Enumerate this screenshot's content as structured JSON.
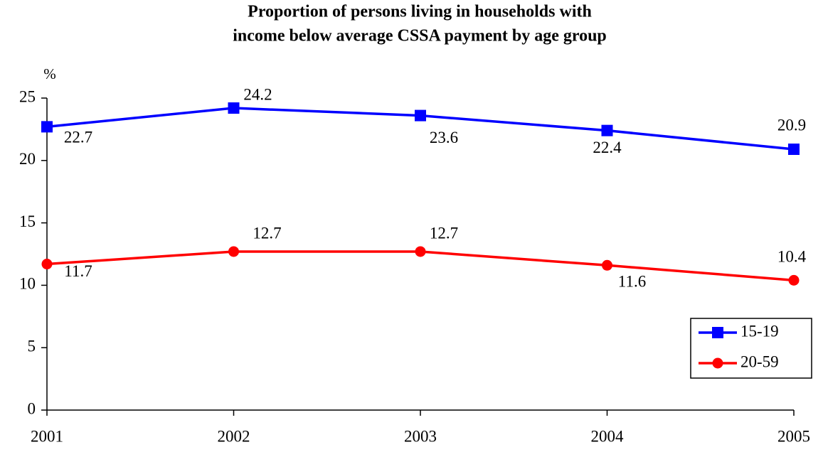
{
  "chart_data": {
    "type": "line",
    "title": [
      "Proportion of persons living in households with",
      "income below average CSSA payment  by age group"
    ],
    "y_label": "%",
    "categories": [
      "2001",
      "2002",
      "2003",
      "2004",
      "2005"
    ],
    "series": [
      {
        "name": "15-19",
        "color": "#0000ff",
        "marker": "square",
        "values": [
          22.7,
          24.2,
          23.6,
          22.4,
          20.9
        ]
      },
      {
        "name": "20-59",
        "color": "#ff0000",
        "marker": "circle",
        "values": [
          11.7,
          12.7,
          12.7,
          11.6,
          10.4
        ]
      }
    ],
    "ylim": [
      0,
      25
    ],
    "yticks": [
      0,
      5,
      10,
      15,
      20,
      25
    ],
    "grid": false,
    "legend": "lower right"
  }
}
